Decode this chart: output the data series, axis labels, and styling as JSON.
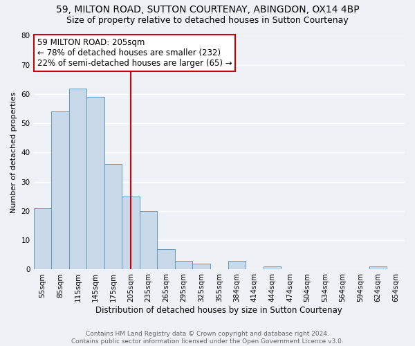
{
  "title": "59, MILTON ROAD, SUTTON COURTENAY, ABINGDON, OX14 4BP",
  "subtitle": "Size of property relative to detached houses in Sutton Courtenay",
  "xlabel": "Distribution of detached houses by size in Sutton Courtenay",
  "ylabel": "Number of detached properties",
  "bin_labels": [
    "55sqm",
    "85sqm",
    "115sqm",
    "145sqm",
    "175sqm",
    "205sqm",
    "235sqm",
    "265sqm",
    "295sqm",
    "325sqm",
    "355sqm",
    "384sqm",
    "414sqm",
    "444sqm",
    "474sqm",
    "504sqm",
    "534sqm",
    "564sqm",
    "594sqm",
    "624sqm",
    "654sqm"
  ],
  "bar_values": [
    21,
    54,
    62,
    59,
    36,
    25,
    20,
    7,
    3,
    2,
    0,
    3,
    0,
    1,
    0,
    0,
    0,
    0,
    0,
    1,
    0
  ],
  "bar_color": "#c9d9ea",
  "bar_edge_color": "#6699bb",
  "ref_line_idx": 5,
  "annotation_title": "59 MILTON ROAD: 205sqm",
  "annotation_line1": "← 78% of detached houses are smaller (232)",
  "annotation_line2": "22% of semi-detached houses are larger (65) →",
  "annotation_box_color": "#ffffff",
  "annotation_box_edge_color": "#cc0000",
  "ref_line_color": "#cc0000",
  "ylim": [
    0,
    80
  ],
  "yticks": [
    0,
    10,
    20,
    30,
    40,
    50,
    60,
    70,
    80
  ],
  "background_color": "#eef2f7",
  "grid_color": "#ffffff",
  "title_fontsize": 10,
  "subtitle_fontsize": 9,
  "ylabel_fontsize": 8,
  "xlabel_fontsize": 8.5,
  "tick_fontsize": 7.5,
  "ann_fontsize": 8.5,
  "footer_fontsize": 6.5,
  "footer_line1": "Contains HM Land Registry data © Crown copyright and database right 2024.",
  "footer_line2": "Contains public sector information licensed under the Open Government Licence v3.0."
}
